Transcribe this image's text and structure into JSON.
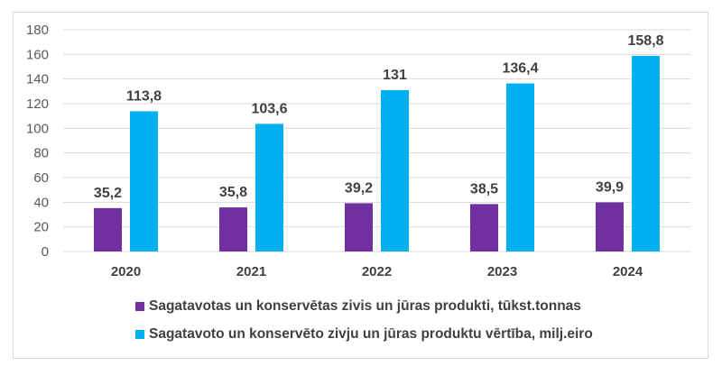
{
  "chart_data": {
    "type": "bar",
    "categories": [
      "2020",
      "2021",
      "2022",
      "2023",
      "2024"
    ],
    "series": [
      {
        "name": "Sagatavotas un konservētas zivis un jūras produkti, tūkst.tonnas",
        "values": [
          35.2,
          35.8,
          39.2,
          38.5,
          39.9
        ],
        "labels": [
          "35,2",
          "35,8",
          "39,2",
          "38,5",
          "39,9"
        ],
        "color": "#7030a0"
      },
      {
        "name": "Sagatavoto un konservēto zivju un jūras produktu vērtība, milj.eiro",
        "values": [
          113.8,
          103.6,
          131,
          136.4,
          158.8
        ],
        "labels": [
          "113,8",
          "103,6",
          "131",
          "136,4",
          "158,8"
        ],
        "color": "#00b0f0"
      }
    ],
    "yticks": [
      "0",
      "20",
      "40",
      "60",
      "80",
      "100",
      "120",
      "140",
      "160",
      "180"
    ],
    "ylim": [
      0,
      180
    ],
    "grid": true,
    "legend_position": "bottom"
  }
}
